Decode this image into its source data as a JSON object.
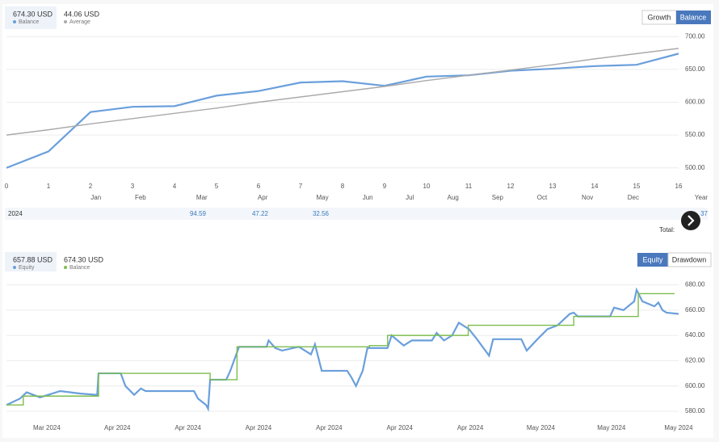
{
  "ui": {
    "chart1_tabs": [
      "Growth",
      "Balance"
    ],
    "chart2_tabs": [
      "Equity",
      "Drawdown"
    ],
    "table": {
      "year": "2024",
      "cells": [
        94.59,
        47.22,
        32.56,
        37
      ]
    },
    "total": "Total:"
  },
  "chart_data": [
    {
      "type": "line",
      "x": [
        0,
        1,
        2,
        3,
        4,
        5,
        6,
        7,
        8,
        9,
        10,
        11,
        12,
        13,
        14,
        15,
        16
      ],
      "xlim": [
        0,
        16
      ],
      "xticks": [
        0,
        1,
        2,
        3,
        4,
        5,
        6,
        7,
        8,
        9,
        10,
        11,
        12,
        13,
        14,
        15,
        16
      ],
      "x2ticks": [
        {
          "value": 2.13,
          "label": "Jan"
        },
        {
          "value": 3.19,
          "label": "Feb"
        },
        {
          "value": 4.65,
          "label": "Mar"
        },
        {
          "value": 6.1,
          "label": "Apr"
        },
        {
          "value": 7.52,
          "label": "May"
        },
        {
          "value": 8.6,
          "label": "Jun"
        },
        {
          "value": 9.6,
          "label": "Jul"
        },
        {
          "value": 10.63,
          "label": "Aug"
        },
        {
          "value": 11.69,
          "label": "Sep"
        },
        {
          "value": 12.75,
          "label": "Oct"
        },
        {
          "value": 13.83,
          "label": "Nov"
        },
        {
          "value": 14.92,
          "label": "Dec"
        }
      ],
      "x2label": "Year",
      "ylim": [
        480,
        720
      ],
      "yticks": [
        {
          "value": 500,
          "label": "500.00"
        },
        {
          "value": 550,
          "label": "550.00"
        },
        {
          "value": 600,
          "label": "600.00"
        },
        {
          "value": 650,
          "label": "650.00"
        },
        {
          "value": 700,
          "label": "700.00"
        }
      ],
      "grid": true,
      "series": [
        {
          "name": "Balance",
          "current": "674.30 USD",
          "color": "#6a9fdc",
          "values": [
            500,
            525,
            585,
            593,
            594,
            610,
            617,
            630,
            632,
            625,
            639,
            641,
            648,
            651,
            655,
            657,
            674
          ]
        },
        {
          "name": "Average",
          "current": "44.06 USD",
          "color": "#aaaaaa",
          "values": [
            550,
            558,
            567,
            575,
            583,
            591,
            600,
            608,
            616,
            624,
            633,
            641,
            649,
            657,
            666,
            674,
            682
          ]
        }
      ]
    },
    {
      "type": "line",
      "xlim": [
        0,
        100
      ],
      "xticks": [
        {
          "value": 6,
          "label": "Mar 2024"
        },
        {
          "value": 16.5,
          "label": "Apr 2024"
        },
        {
          "value": 27,
          "label": "Apr 2024"
        },
        {
          "value": 37.5,
          "label": "Apr 2024"
        },
        {
          "value": 48,
          "label": "Apr 2024"
        },
        {
          "value": 58.5,
          "label": "Apr 2024"
        },
        {
          "value": 69,
          "label": "Apr 2024"
        },
        {
          "value": 79.5,
          "label": "May 2024"
        },
        {
          "value": 90,
          "label": "May 2024"
        },
        {
          "value": 100,
          "label": "May 2024"
        }
      ],
      "ylim": [
        573,
        688
      ],
      "yticks": [
        {
          "value": 580,
          "label": "580.00"
        },
        {
          "value": 600,
          "label": "600.00"
        },
        {
          "value": 620,
          "label": "620.00"
        },
        {
          "value": 640,
          "label": "640.00"
        },
        {
          "value": 660,
          "label": "660.00"
        },
        {
          "value": 680,
          "label": "680.00"
        }
      ],
      "grid": true,
      "series": [
        {
          "name": "Equity",
          "current": "657.88 USD",
          "color": "#6a9fdc",
          "x": [
            0,
            2,
            3,
            5,
            8,
            11,
            13.5,
            13.7,
            17,
            17.7,
            19,
            20,
            20.7,
            27.9,
            28.5,
            29.7,
            30,
            30.3,
            32.7,
            33.3,
            34.6,
            38.7,
            39,
            40,
            41,
            43.5,
            45.3,
            45.9,
            46.9,
            50.7,
            51.3,
            52,
            53,
            53.7,
            56.7,
            57.3,
            59.1,
            60.3,
            63.3,
            64,
            65.1,
            66.3,
            67.3,
            68.8,
            70,
            71.8,
            72.4,
            76.6,
            77.4,
            79,
            80.5,
            82,
            83.8,
            84.4,
            85,
            89.8,
            90.4,
            91.8,
            93.4,
            93.75,
            94.6,
            96.4,
            97,
            97.6,
            98.2,
            100
          ],
          "values": [
            585,
            590,
            595,
            591,
            596,
            594,
            593,
            610,
            610,
            600,
            593,
            598,
            596,
            596,
            590,
            585,
            582,
            605,
            605,
            612,
            631,
            631,
            636,
            630,
            628,
            631,
            625,
            633,
            612,
            612,
            607,
            600,
            612,
            630,
            630,
            640,
            632,
            636,
            636,
            642,
            636,
            640,
            650,
            645,
            637,
            624,
            637,
            637,
            628,
            637,
            645,
            648,
            657,
            658,
            655,
            655,
            662,
            660,
            667,
            676,
            667,
            663,
            666,
            660,
            658,
            657
          ]
        },
        {
          "name": "Balance",
          "current": "674.30 USD",
          "color": "#7cbd4e",
          "x": [
            0,
            2.5,
            2.5,
            13.7,
            13.7,
            30.3,
            30.3,
            34.3,
            34.3,
            54,
            54,
            56.7,
            56.7,
            68.7,
            68.7,
            84.4,
            84.4,
            94,
            94,
            99.4
          ],
          "values": [
            585,
            585,
            592,
            592,
            610,
            610,
            605,
            605,
            631,
            631,
            632,
            632,
            640,
            640,
            648,
            648,
            655,
            655,
            673,
            673
          ]
        }
      ]
    }
  ]
}
